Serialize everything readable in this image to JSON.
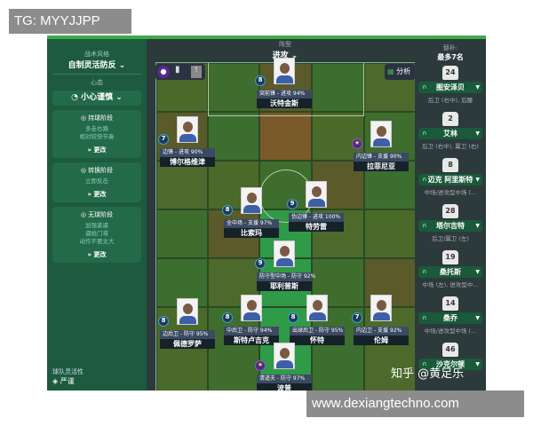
{
  "overlay": {
    "tg_label": "TG: MYYJJPP",
    "website": "www.dexiangtechno.com",
    "zhihu": "知乎 @黄足乐"
  },
  "left": {
    "style_label": "战术风格",
    "style_value": "自制灵活防反",
    "mentality_label": "心态",
    "mentality_value": "小心谨慎",
    "phases": [
      {
        "title": "持球阶段",
        "desc": [
          "多走右路",
          "相对较快节奏"
        ],
        "change": "更改"
      },
      {
        "title": "转换阶段",
        "desc": [
          "立即反击"
        ],
        "change": "更改"
      },
      {
        "title": "无球阶段",
        "desc": [
          "加强紧逼",
          "逼抢门将",
          "动作不要太大"
        ],
        "change": "更改"
      }
    ],
    "fluidity_label": "球队灵活性",
    "fluidity_value": "严谨"
  },
  "formation": {
    "label": "阵型",
    "value": "进攻",
    "analysis": "分析"
  },
  "players": [
    {
      "num": "8",
      "role": "突前锋 - 进攻 94%",
      "name": "沃特金斯"
    },
    {
      "num": "7",
      "role": "边锋 - 进攻 90%",
      "name": "博尔格维津"
    },
    {
      "num": "★",
      "role": "内边锋 - 支援 90%",
      "name": "拉菲尼亚"
    },
    {
      "num": "8",
      "role": "全中场 - 支援 97%",
      "name": "比索玛"
    },
    {
      "num": "9",
      "role": "伪边锋 - 进攻 100%",
      "name": "特劳雷"
    },
    {
      "num": "9",
      "role": "防守型中场 - 防守 92%",
      "name": "耶利普斯"
    },
    {
      "num": "8",
      "role": "边后卫 - 防守 95%",
      "name": "佩德罗萨"
    },
    {
      "num": "8",
      "role": "中后卫 - 防守 94%",
      "name": "斯特卢吉克"
    },
    {
      "num": "8",
      "role": "出球后卫 - 防守 95%",
      "name": "怀特"
    },
    {
      "num": "7",
      "role": "内边卫 - 支援 92%",
      "name": "伦姆"
    },
    {
      "num": "★",
      "role": "清道夫 - 防守 97%",
      "name": "波普"
    }
  ],
  "subs": {
    "title": "替补:",
    "limit": "最多7名",
    "list": [
      {
        "num": "24",
        "name": "图安泽贝",
        "pos": "后卫 (右中), 后腰"
      },
      {
        "num": "2",
        "name": "艾林",
        "pos": "后卫 (右中), 翼卫 (右)"
      },
      {
        "num": "8",
        "name": "迈克 阿里斯特",
        "pos": "中场/进攻型中场 (..."
      },
      {
        "num": "28",
        "name": "塔尔吉特",
        "pos": "后卫/翼卫 (左)"
      },
      {
        "num": "19",
        "name": "桑托斯",
        "pos": "中场 (左), 进攻型中..."
      },
      {
        "num": "14",
        "name": "桑乔",
        "pos": "中场/进攻型中场 (..."
      },
      {
        "num": "46",
        "name": "沙克尔顿",
        "pos": ""
      }
    ]
  },
  "colors": {
    "panel": "#1d5a3e",
    "accent": "#3faa4a",
    "pitch": "#3d6b2c"
  }
}
